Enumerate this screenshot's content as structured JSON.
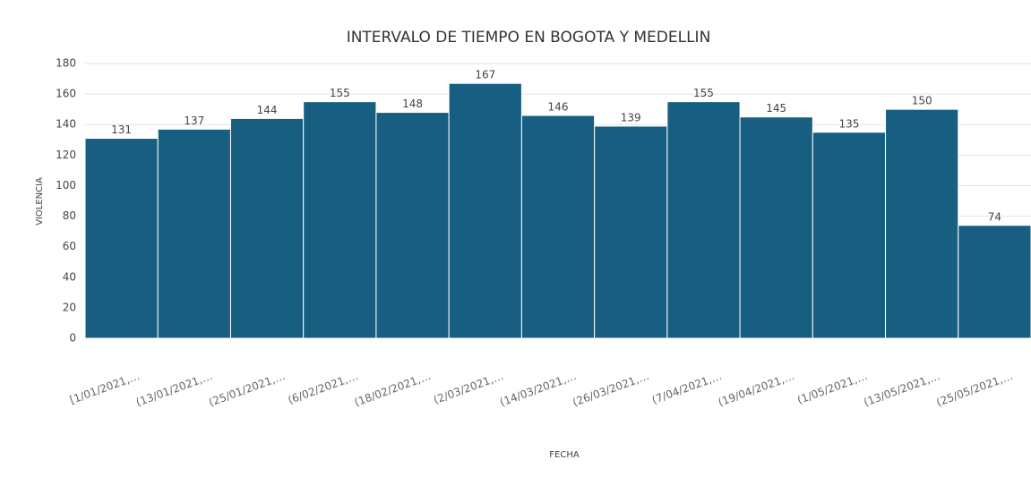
{
  "chart_data": {
    "type": "bar",
    "title": "INTERVALO DE TIEMPO EN BOGOTA Y MEDELLIN",
    "x_label": "FECHA",
    "y_label": "VIOLENCIA",
    "categories": [
      "[1/01/2021,…",
      "(13/01/2021,…",
      "(25/01/2021,…",
      "(6/02/2021,…",
      "(18/02/2021,…",
      "(2/03/2021,…",
      "(14/03/2021,…",
      "(26/03/2021,…",
      "(7/04/2021,…",
      "(19/04/2021,…",
      "(1/05/2021,…",
      "(13/05/2021,…",
      "(25/05/2021,…"
    ],
    "values": [
      131,
      137,
      144,
      155,
      148,
      167,
      146,
      139,
      155,
      145,
      135,
      150,
      74
    ],
    "color": "#175e80",
    "ylim": [
      0,
      180
    ],
    "yticks": [
      0,
      20,
      40,
      60,
      80,
      100,
      120,
      140,
      160,
      180
    ],
    "grid": true
  }
}
